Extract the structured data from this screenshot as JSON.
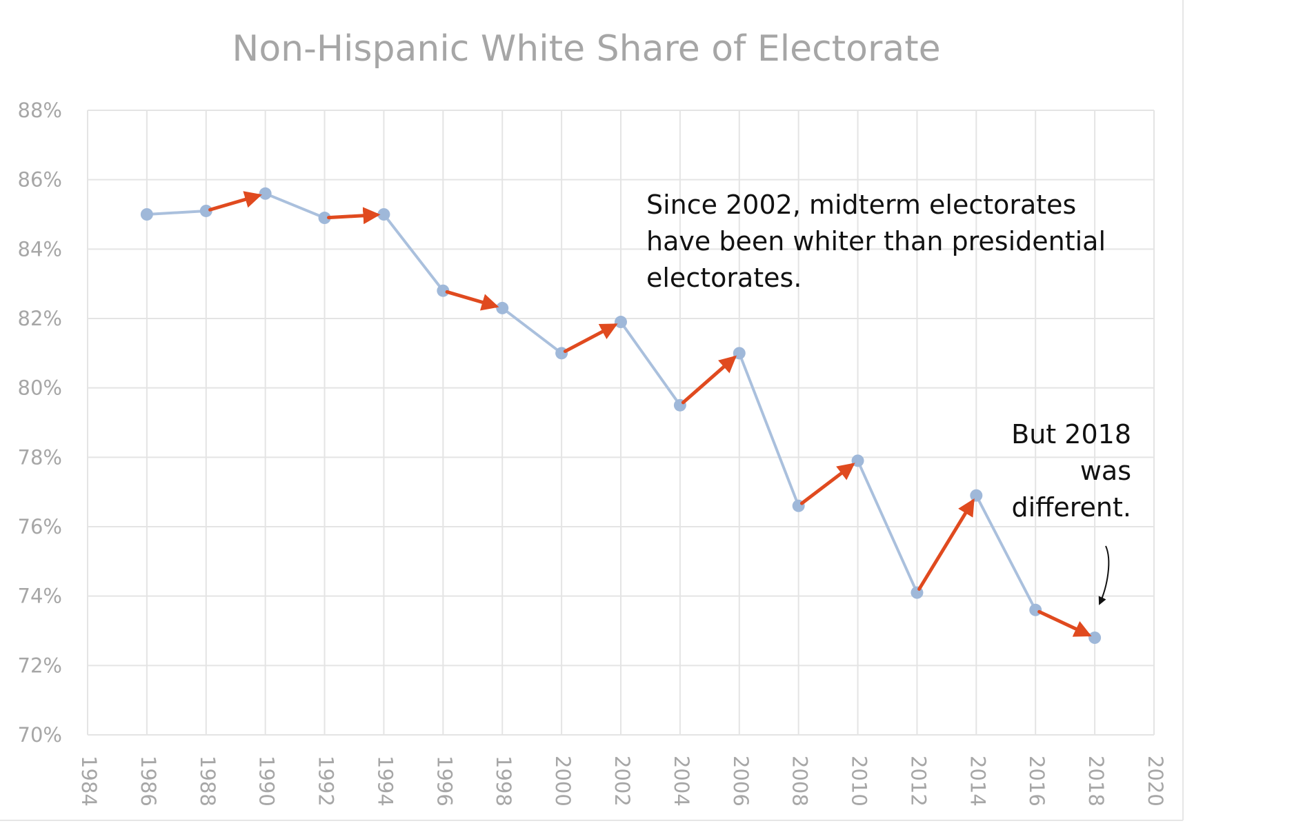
{
  "chart_data": {
    "type": "line",
    "title": "Non-Hispanic White Share of Electorate",
    "xlabel": "",
    "ylabel": "",
    "xlim": [
      1984,
      2020
    ],
    "ylim": [
      70,
      88
    ],
    "x_ticks": [
      "1984",
      "1986",
      "1988",
      "1990",
      "1992",
      "1994",
      "1996",
      "1998",
      "2000",
      "2002",
      "2004",
      "2006",
      "2008",
      "2010",
      "2012",
      "2014",
      "2016",
      "2018",
      "2020"
    ],
    "y_ticks": [
      "70%",
      "72%",
      "74%",
      "76%",
      "78%",
      "80%",
      "82%",
      "84%",
      "86%",
      "88%"
    ],
    "grid": true,
    "series": [
      {
        "name": "Non-Hispanic White share",
        "x": [
          1986,
          1988,
          1990,
          1992,
          1994,
          1996,
          1998,
          2000,
          2002,
          2004,
          2006,
          2008,
          2010,
          2012,
          2014,
          2016,
          2018
        ],
        "values": [
          85.0,
          85.1,
          85.6,
          84.9,
          85.0,
          82.8,
          82.3,
          81.0,
          81.9,
          79.5,
          81.0,
          76.6,
          77.9,
          74.1,
          76.9,
          73.6,
          72.8
        ]
      }
    ],
    "arrows": [
      {
        "from": 1988,
        "to": 1990
      },
      {
        "from": 1992,
        "to": 1994
      },
      {
        "from": 1996,
        "to": 1998
      },
      {
        "from": 2000,
        "to": 2002
      },
      {
        "from": 2004,
        "to": 2006
      },
      {
        "from": 2008,
        "to": 2010
      },
      {
        "from": 2012,
        "to": 2014
      },
      {
        "from": 2016,
        "to": 2018
      }
    ],
    "annotations": {
      "midterm_note": [
        "Since 2002, midterm electorates",
        "have been whiter than presidential",
        "electorates."
      ],
      "exception_note": [
        "But 2018",
        "was",
        "different."
      ]
    }
  },
  "colors": {
    "line": "#aac0dd",
    "marker": "#9fb8d9",
    "arrow": "#e04a1f",
    "grid": "#e4e4e4",
    "axis_text": "#a6a6a6"
  }
}
